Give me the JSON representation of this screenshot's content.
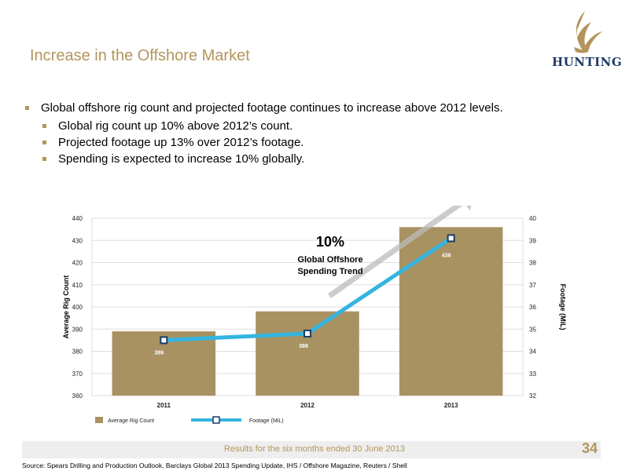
{
  "title": "Increase in the Offshore Market",
  "logo": {
    "text": "HUNTING"
  },
  "bullets": {
    "main": "Global offshore rig count and projected footage continues to increase above 2012 levels.",
    "sub": [
      "Global rig count up 10% above 2012’s count.",
      "Projected footage up 13% over 2012’s footage.",
      "Spending is expected to increase 10% globally."
    ]
  },
  "chart_data": {
    "type": "bar",
    "categories": [
      "2011",
      "2012",
      "2013"
    ],
    "series": [
      {
        "name": "Average Rig Count",
        "type": "bar",
        "axis": "left",
        "values": [
          389,
          398,
          436
        ],
        "labels": [
          "389",
          "398",
          "436"
        ],
        "color": "#a89262"
      },
      {
        "name": "Footage (MiL)",
        "type": "line",
        "axis": "right",
        "values": [
          34.5,
          34.8,
          39.1
        ],
        "color": "#33b5e0"
      }
    ],
    "ylabel": "Average Rig Count",
    "y2label": "Footage (MiL)",
    "ylim": [
      360,
      440
    ],
    "y2lim": [
      32,
      40
    ],
    "yticks": [
      "360",
      "370",
      "380",
      "390",
      "400",
      "410",
      "420",
      "430",
      "440"
    ],
    "y2ticks": [
      "32",
      "33",
      "34",
      "35",
      "36",
      "37",
      "38",
      "39",
      "40"
    ],
    "annotation": {
      "big": "10%",
      "line1": "Global Offshore",
      "line2": "Spending Trend"
    },
    "legend_position": "bottom-left",
    "grid": true
  },
  "footer": {
    "text": "Results for the six months ended 30 June 2013",
    "page": "34",
    "source": "Source: Spears Drilling and Production Outlook, Barclays Global 2013 Spending Update, IHS / Offshore Magazine, Reuters / Shell"
  }
}
